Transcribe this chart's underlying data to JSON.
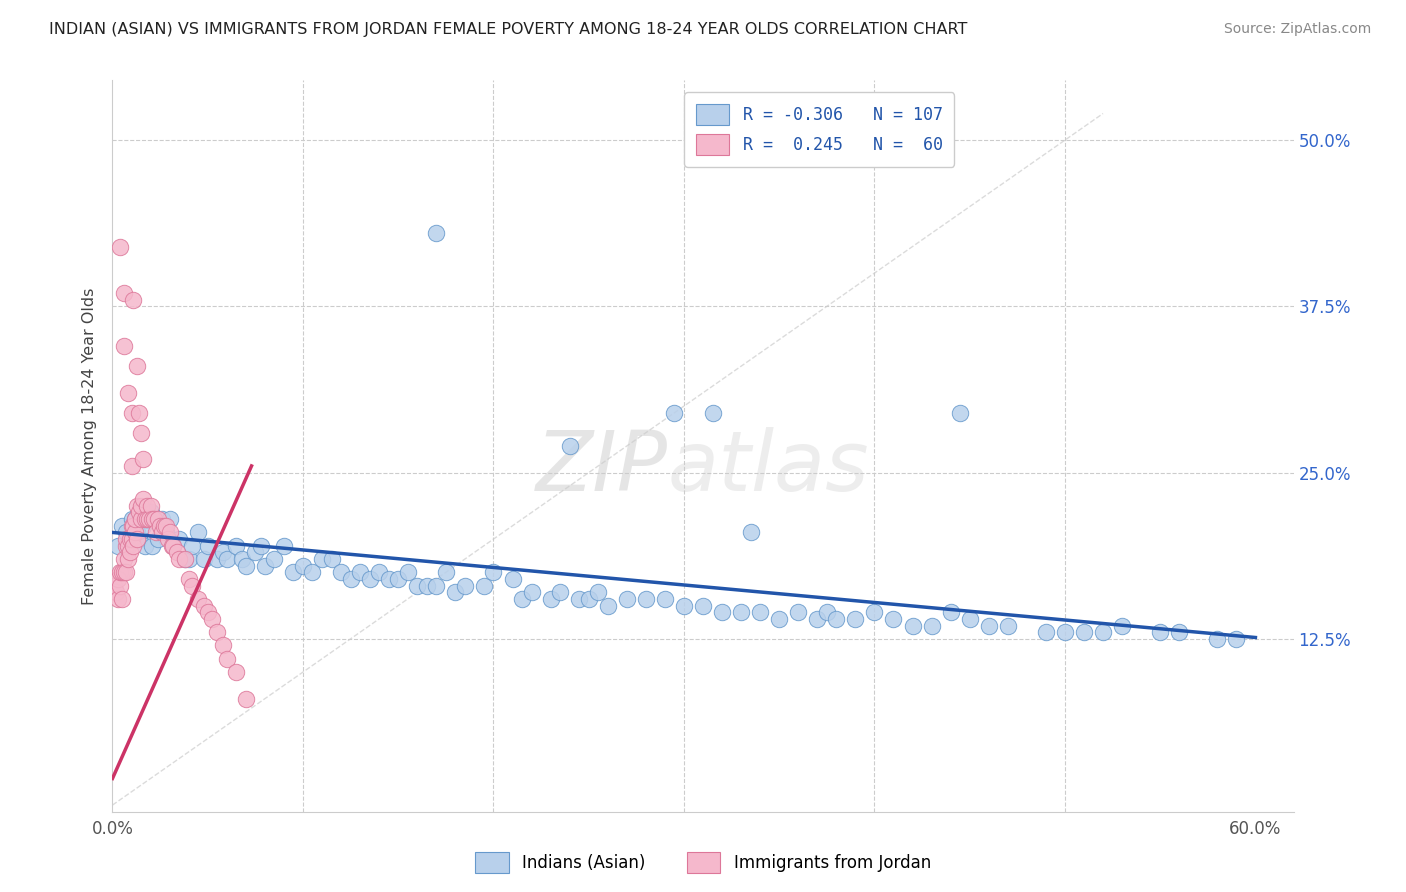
{
  "title": "INDIAN (ASIAN) VS IMMIGRANTS FROM JORDAN FEMALE POVERTY AMONG 18-24 YEAR OLDS CORRELATION CHART",
  "source": "Source: ZipAtlas.com",
  "ylabel": "Female Poverty Among 18-24 Year Olds",
  "ytick_labels": [
    "50.0%",
    "37.5%",
    "25.0%",
    "12.5%"
  ],
  "ytick_values": [
    0.5,
    0.375,
    0.25,
    0.125
  ],
  "xlim": [
    0.0,
    0.62
  ],
  "ylim": [
    -0.005,
    0.545
  ],
  "legend_label_blue": "Indians (Asian)",
  "legend_label_pink": "Immigrants from Jordan",
  "watermark_zip": "ZIP",
  "watermark_atlas": "atlas",
  "blue_color": "#b8d0eb",
  "blue_edge_color": "#6699cc",
  "blue_line_color": "#2255aa",
  "pink_color": "#f5b8cc",
  "pink_edge_color": "#dd7799",
  "pink_line_color": "#cc3366",
  "diagonal_color": "#cccccc",
  "blue_line_x0": 0.0,
  "blue_line_y0": 0.205,
  "blue_line_x1": 0.6,
  "blue_line_y1": 0.126,
  "pink_line_x0": 0.0,
  "pink_line_y0": 0.02,
  "pink_line_x1": 0.073,
  "pink_line_y1": 0.255,
  "blue_x": [
    0.003,
    0.005,
    0.007,
    0.008,
    0.009,
    0.01,
    0.011,
    0.012,
    0.013,
    0.014,
    0.015,
    0.016,
    0.017,
    0.018,
    0.02,
    0.021,
    0.022,
    0.024,
    0.025,
    0.026,
    0.028,
    0.03,
    0.032,
    0.035,
    0.038,
    0.04,
    0.042,
    0.045,
    0.048,
    0.05,
    0.055,
    0.058,
    0.06,
    0.065,
    0.068,
    0.07,
    0.075,
    0.078,
    0.08,
    0.085,
    0.09,
    0.095,
    0.1,
    0.105,
    0.11,
    0.115,
    0.12,
    0.125,
    0.13,
    0.135,
    0.14,
    0.145,
    0.15,
    0.155,
    0.16,
    0.165,
    0.17,
    0.175,
    0.18,
    0.185,
    0.195,
    0.2,
    0.21,
    0.215,
    0.22,
    0.23,
    0.235,
    0.245,
    0.25,
    0.255,
    0.26,
    0.27,
    0.28,
    0.29,
    0.3,
    0.31,
    0.32,
    0.33,
    0.34,
    0.35,
    0.36,
    0.37,
    0.375,
    0.38,
    0.39,
    0.4,
    0.41,
    0.42,
    0.43,
    0.44,
    0.45,
    0.46,
    0.47,
    0.49,
    0.5,
    0.51,
    0.52,
    0.53,
    0.55,
    0.56,
    0.58,
    0.59,
    0.17,
    0.24,
    0.295,
    0.315,
    0.335,
    0.445
  ],
  "blue_y": [
    0.195,
    0.21,
    0.205,
    0.195,
    0.2,
    0.215,
    0.21,
    0.215,
    0.205,
    0.2,
    0.215,
    0.21,
    0.195,
    0.215,
    0.22,
    0.195,
    0.215,
    0.2,
    0.21,
    0.215,
    0.205,
    0.215,
    0.195,
    0.2,
    0.185,
    0.185,
    0.195,
    0.205,
    0.185,
    0.195,
    0.185,
    0.19,
    0.185,
    0.195,
    0.185,
    0.18,
    0.19,
    0.195,
    0.18,
    0.185,
    0.195,
    0.175,
    0.18,
    0.175,
    0.185,
    0.185,
    0.175,
    0.17,
    0.175,
    0.17,
    0.175,
    0.17,
    0.17,
    0.175,
    0.165,
    0.165,
    0.165,
    0.175,
    0.16,
    0.165,
    0.165,
    0.175,
    0.17,
    0.155,
    0.16,
    0.155,
    0.16,
    0.155,
    0.155,
    0.16,
    0.15,
    0.155,
    0.155,
    0.155,
    0.15,
    0.15,
    0.145,
    0.145,
    0.145,
    0.14,
    0.145,
    0.14,
    0.145,
    0.14,
    0.14,
    0.145,
    0.14,
    0.135,
    0.135,
    0.145,
    0.14,
    0.135,
    0.135,
    0.13,
    0.13,
    0.13,
    0.13,
    0.135,
    0.13,
    0.13,
    0.125,
    0.125,
    0.43,
    0.27,
    0.295,
    0.295,
    0.205,
    0.295
  ],
  "pink_x": [
    0.001,
    0.002,
    0.003,
    0.003,
    0.004,
    0.004,
    0.005,
    0.005,
    0.006,
    0.006,
    0.007,
    0.007,
    0.007,
    0.008,
    0.008,
    0.009,
    0.009,
    0.01,
    0.01,
    0.011,
    0.011,
    0.012,
    0.012,
    0.013,
    0.013,
    0.014,
    0.015,
    0.015,
    0.016,
    0.017,
    0.018,
    0.018,
    0.019,
    0.02,
    0.021,
    0.022,
    0.023,
    0.024,
    0.025,
    0.026,
    0.027,
    0.028,
    0.029,
    0.03,
    0.031,
    0.032,
    0.034,
    0.035,
    0.038,
    0.04,
    0.042,
    0.045,
    0.048,
    0.05,
    0.052,
    0.055,
    0.058,
    0.06,
    0.065,
    0.07
  ],
  "pink_y": [
    0.165,
    0.16,
    0.155,
    0.17,
    0.165,
    0.175,
    0.155,
    0.175,
    0.185,
    0.175,
    0.195,
    0.2,
    0.175,
    0.195,
    0.185,
    0.19,
    0.2,
    0.2,
    0.21,
    0.21,
    0.195,
    0.205,
    0.215,
    0.2,
    0.225,
    0.22,
    0.215,
    0.225,
    0.23,
    0.215,
    0.225,
    0.215,
    0.215,
    0.225,
    0.215,
    0.215,
    0.205,
    0.215,
    0.21,
    0.205,
    0.21,
    0.21,
    0.2,
    0.205,
    0.195,
    0.195,
    0.19,
    0.185,
    0.185,
    0.17,
    0.165,
    0.155,
    0.15,
    0.145,
    0.14,
    0.13,
    0.12,
    0.11,
    0.1,
    0.08
  ],
  "pink_high_x": [
    0.004,
    0.006,
    0.006,
    0.008,
    0.01,
    0.01,
    0.011,
    0.013,
    0.014,
    0.015,
    0.016
  ],
  "pink_high_y": [
    0.42,
    0.385,
    0.345,
    0.31,
    0.295,
    0.255,
    0.38,
    0.33,
    0.295,
    0.28,
    0.26
  ]
}
